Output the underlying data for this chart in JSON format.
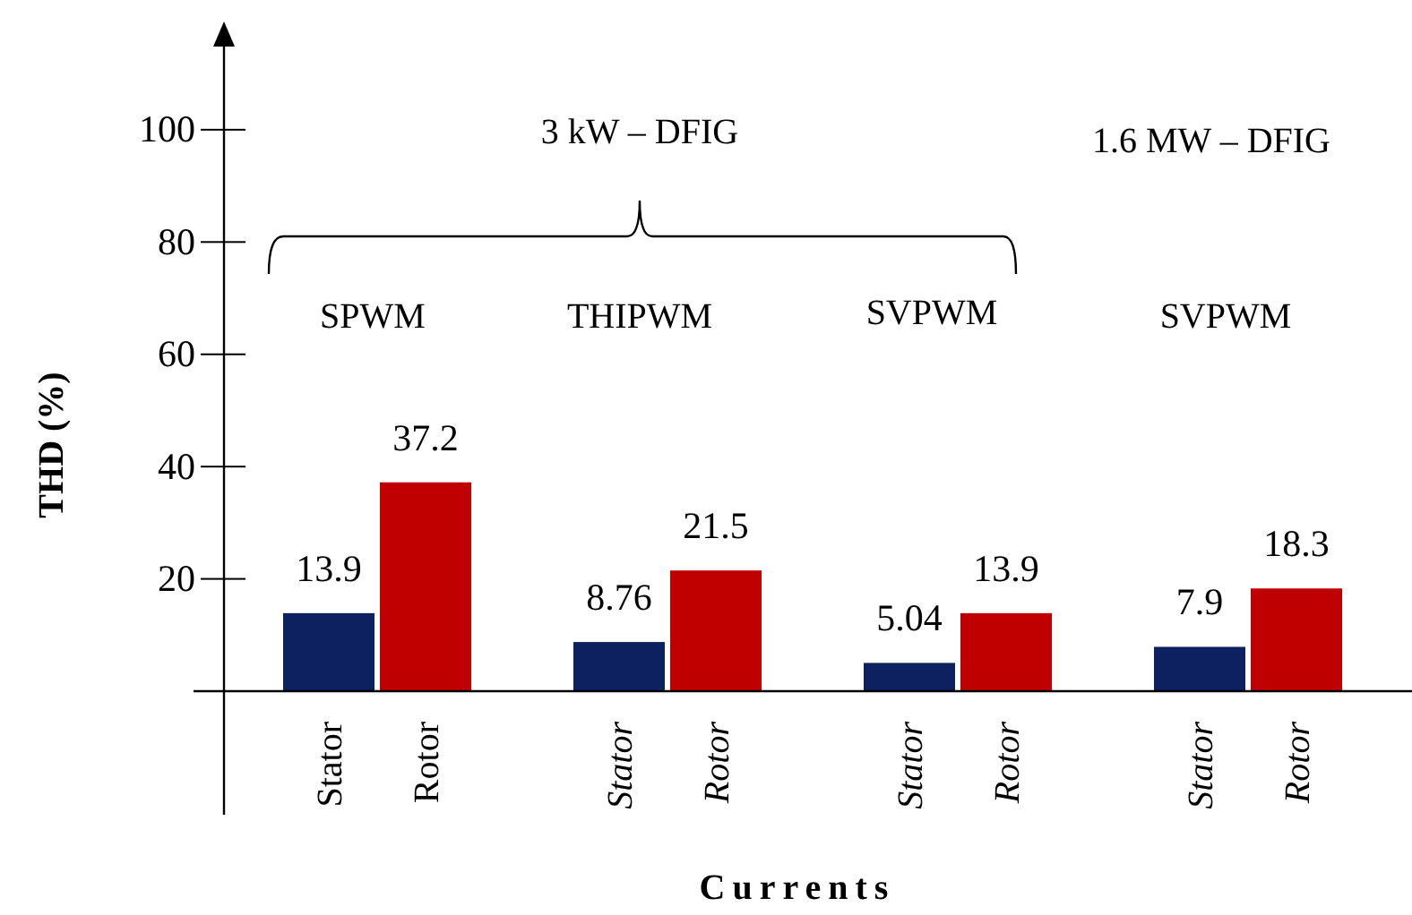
{
  "chart_data": {
    "type": "bar",
    "xlabel": "Currents",
    "ylabel": "THD (%)",
    "categories": [
      "Stator",
      "Rotor",
      "Stator",
      "Rotor",
      "Stator",
      "Rotor",
      "Stator",
      "Rotor"
    ],
    "values": [
      13.9,
      37.2,
      8.76,
      21.5,
      5.04,
      13.9,
      7.9,
      18.3
    ],
    "colors": [
      "#0d2160",
      "#c00000",
      "#0d2160",
      "#c00000",
      "#0d2160",
      "#c00000",
      "#0d2160",
      "#c00000"
    ],
    "ylim": [
      -22,
      118
    ],
    "yticks": [
      20,
      40,
      60,
      80,
      100
    ],
    "data_labels": true,
    "grid": false,
    "annotations": [
      "3 kW – DFIG",
      "1.6 MW – DFIG",
      "SPWM",
      "THIPWM",
      "SVPWM",
      "SVPWM"
    ]
  }
}
